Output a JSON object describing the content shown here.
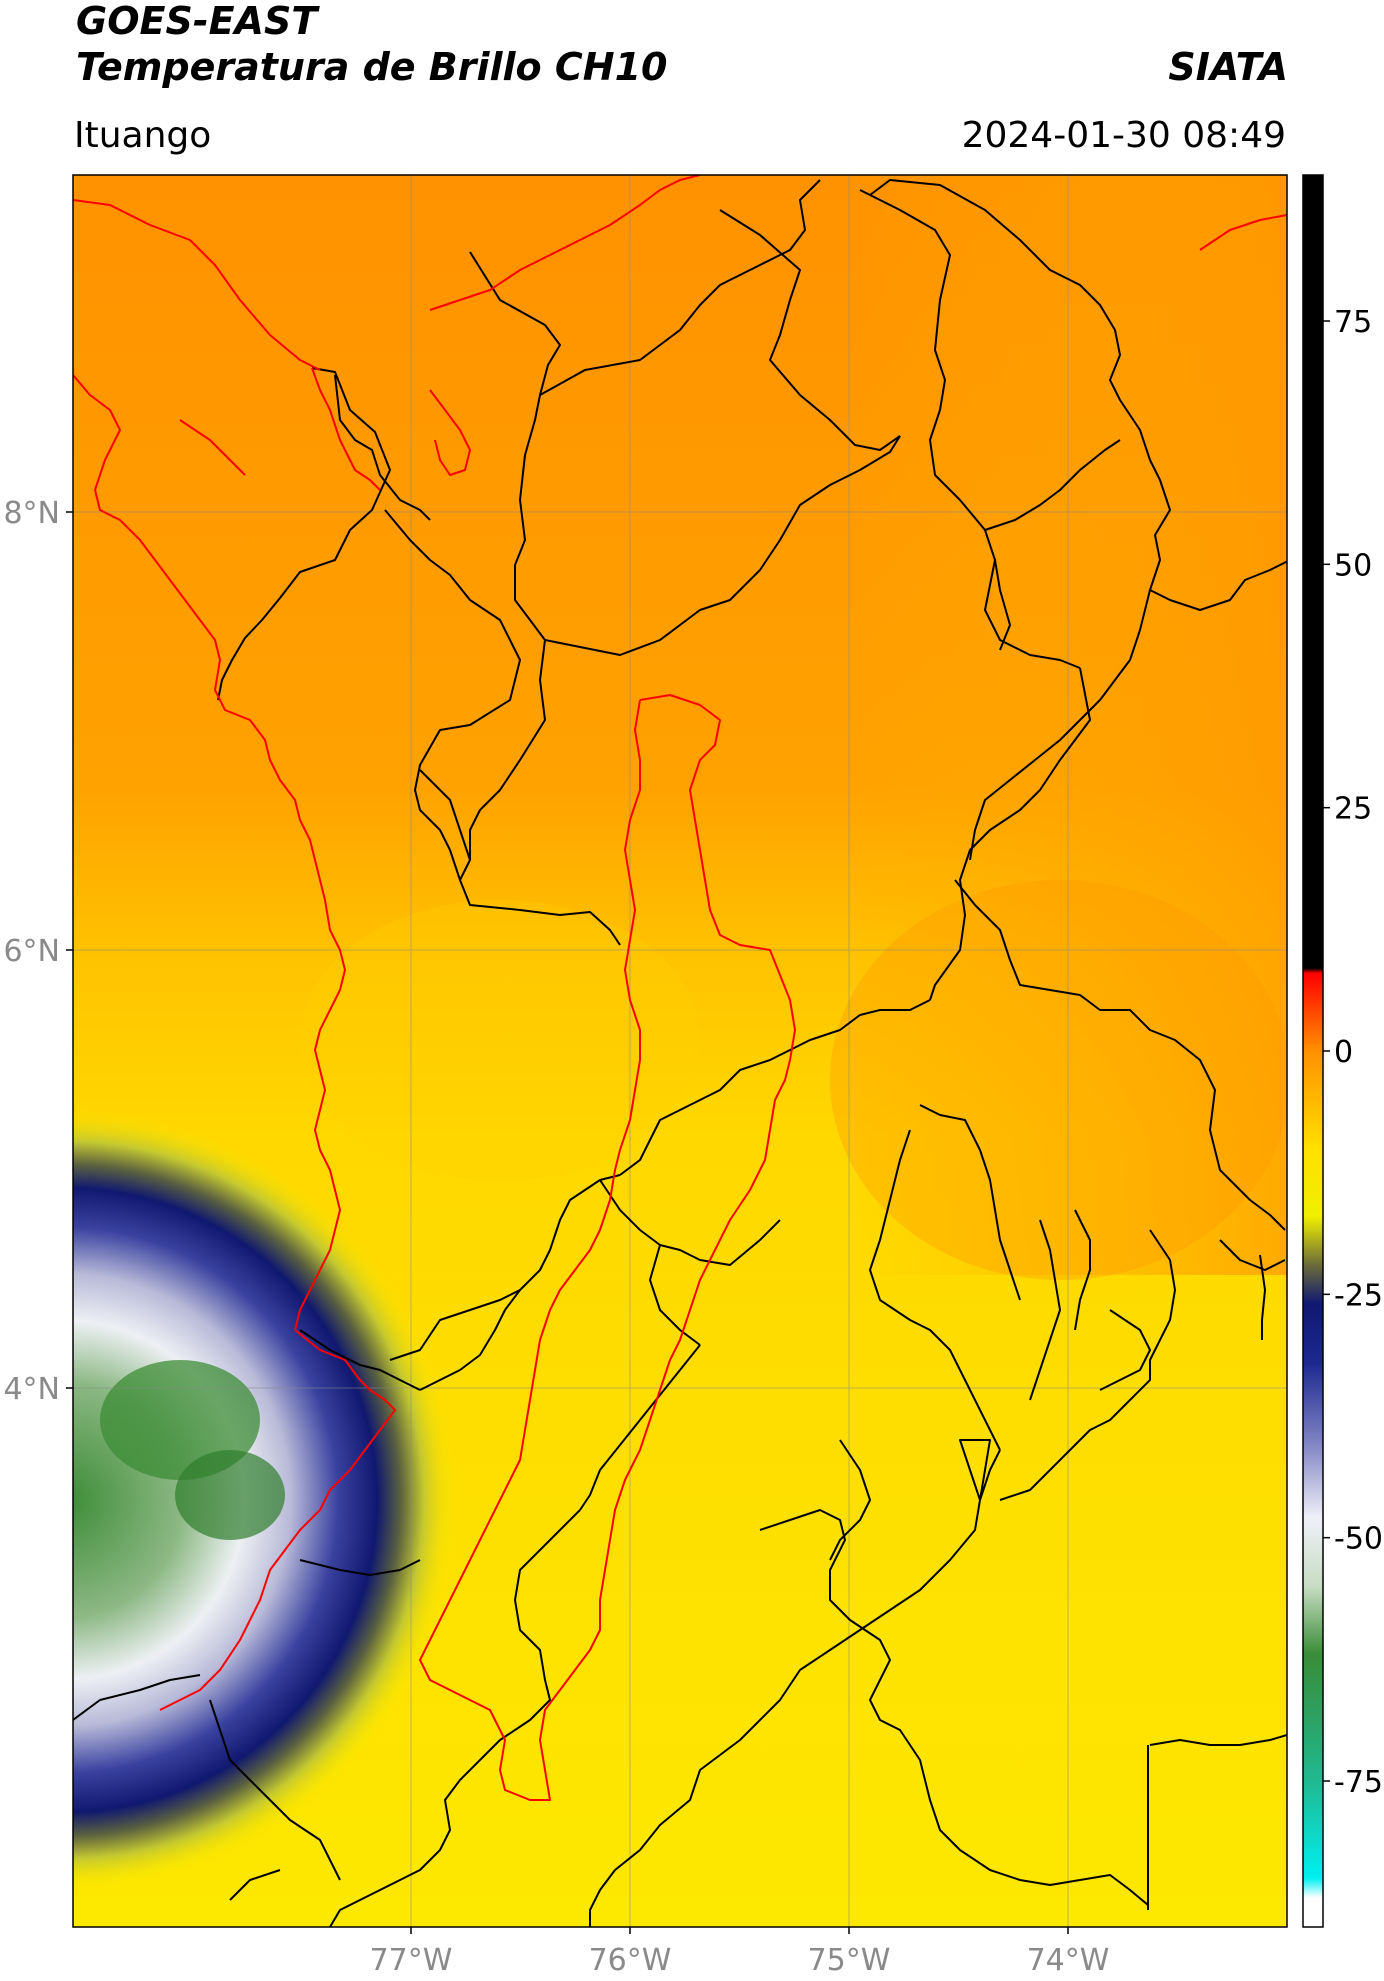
{
  "header": {
    "satellite": "GOES-EAST",
    "product": "Temperatura de Brillo CH10",
    "org": "SIATA",
    "location": "Ituango",
    "datetime": "2024-01-30 08:49"
  },
  "map": {
    "lat_ticks": [
      "8°N",
      "6°N",
      "4°N"
    ],
    "lon_ticks": [
      "77°W",
      "76°W",
      "75°W",
      "74°W"
    ]
  },
  "colorbar": {
    "ticks": [
      "75",
      "50",
      "25",
      "0",
      "-25",
      "-50",
      "-75"
    ],
    "stops": [
      {
        "value": 90,
        "color": "#000000"
      },
      {
        "value": 8.5,
        "color": "#000000"
      },
      {
        "value": 8,
        "color": "#ff0000"
      },
      {
        "value": 0,
        "color": "#ff9000"
      },
      {
        "value": -10,
        "color": "#ffe000"
      },
      {
        "value": -17,
        "color": "#f0f000"
      },
      {
        "value": -22,
        "color": "#6b6b3a"
      },
      {
        "value": -26,
        "color": "#101870"
      },
      {
        "value": -32,
        "color": "#1c2890"
      },
      {
        "value": -40,
        "color": "#7c80c0"
      },
      {
        "value": -48,
        "color": "#f0f0f8"
      },
      {
        "value": -55,
        "color": "#c8dcc4"
      },
      {
        "value": -62,
        "color": "#3a8c38"
      },
      {
        "value": -75,
        "color": "#20b890"
      },
      {
        "value": -85,
        "color": "#00f0f0"
      },
      {
        "value": -87,
        "color": "#ffffff"
      },
      {
        "value": -90,
        "color": "#ffffff"
      }
    ]
  }
}
